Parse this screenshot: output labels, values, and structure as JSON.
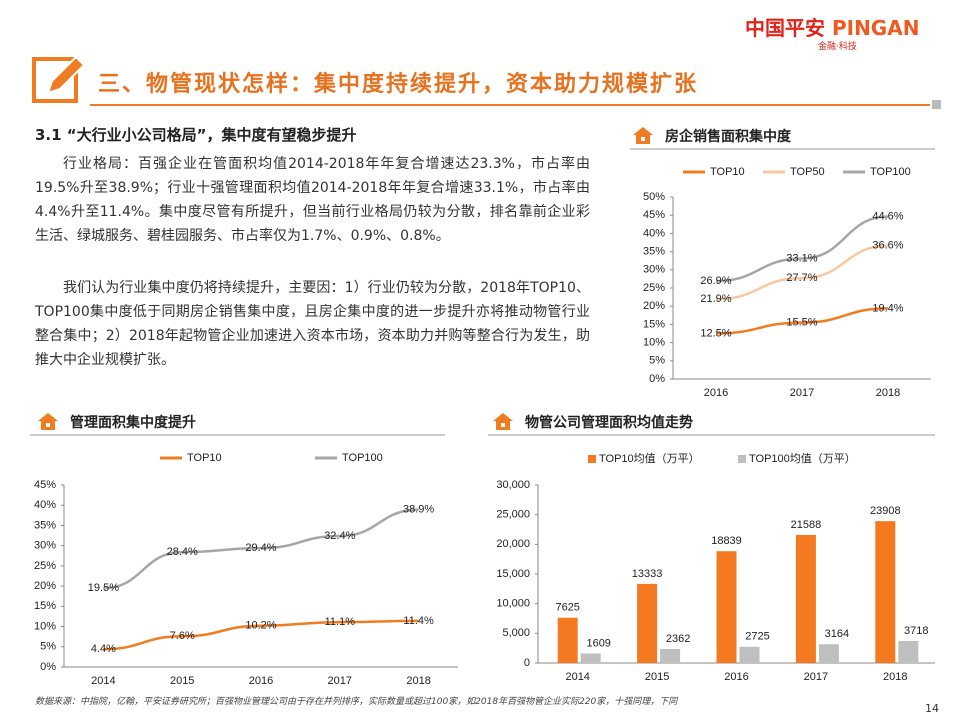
{
  "header": {
    "logo": "中国平安",
    "logo_en": "PINGAN",
    "tagline": "金融·科技",
    "title": "三、物管现状怎样：集中度持续提升，资本助力规模扩张"
  },
  "section": {
    "heading": "3.1 “大行业小公司格局”，集中度有望稳步提升",
    "paragraphs": [
      "行业格局：百强企业在管面积均值2014-2018年年复合增速达23.3%，市占率由19.5%升至38.9%；行业十强管理面积均值2014-2018年年复合增速33.1%，市占率由4.4%升至11.4%。集中度尽管有所提升，但当前行业格局仍较为分散，排名靠前企业彩生活、绿城服务、碧桂园服务、市占率仅为1.7%、0.9%、0.8%。",
      "我们认为行业集中度仍将持续提升，主要因：1）行业仍较为分散，2018年TOP10、TOP100集中度低于同期房企销售集中度，且房企集中度的进一步提升亦将推动物管行业整合集中；2）2018年起物管企业加速进入资本市场，资本助力并购等整合行为发生，助推大中企业规模扩张。"
    ]
  },
  "chart_data": [
    {
      "type": "line",
      "title": "房企销售面积集中度",
      "categories": [
        "2016",
        "2017",
        "2018"
      ],
      "series": [
        {
          "name": "TOP10",
          "color": "#f07c22",
          "values": [
            12.5,
            15.5,
            19.4
          ],
          "value_labels": [
            "12.5%",
            "15.5%",
            "19.4%"
          ]
        },
        {
          "name": "TOP50",
          "color": "#f8c7a0",
          "values": [
            21.9,
            27.7,
            36.6
          ],
          "value_labels": [
            "21.9%",
            "27.7%",
            "36.6%"
          ]
        },
        {
          "name": "TOP100",
          "color": "#a6a6a6",
          "values": [
            26.9,
            33.1,
            44.6
          ],
          "value_labels": [
            "26.9%",
            "33.1%",
            "44.6%"
          ]
        }
      ],
      "ylim": [
        0,
        50
      ],
      "yticks": [
        {
          "value": 0,
          "label": "0%"
        },
        {
          "value": 5,
          "label": "5%"
        },
        {
          "value": 10,
          "label": "10%"
        },
        {
          "value": 15,
          "label": "15%"
        },
        {
          "value": 20,
          "label": "20%"
        },
        {
          "value": 25,
          "label": "25%"
        },
        {
          "value": 30,
          "label": "30%"
        },
        {
          "value": 35,
          "label": "35%"
        },
        {
          "value": 40,
          "label": "40%"
        },
        {
          "value": 45,
          "label": "45%"
        },
        {
          "value": 50,
          "label": "50%"
        }
      ],
      "grid": false
    },
    {
      "type": "line",
      "title": "管理面积集中度提升",
      "categories": [
        "2014",
        "2015",
        "2016",
        "2017",
        "2018"
      ],
      "series": [
        {
          "name": "TOP10",
          "color": "#f07c22",
          "values": [
            4.4,
            7.6,
            10.2,
            11.1,
            11.4
          ],
          "value_labels": [
            "4.4%",
            "7.6%",
            "10.2%",
            "11.1%",
            "11.4%"
          ]
        },
        {
          "name": "TOP100",
          "color": "#a6a6a6",
          "values": [
            19.5,
            28.4,
            29.4,
            32.4,
            38.9
          ],
          "value_labels": [
            "19.5%",
            "28.4%",
            "29.4%",
            "32.4%",
            "38.9%"
          ]
        }
      ],
      "ylim": [
        0,
        45
      ],
      "yticks": [
        {
          "value": 0,
          "label": "0%"
        },
        {
          "value": 5,
          "label": "5%"
        },
        {
          "value": 10,
          "label": "10%"
        },
        {
          "value": 15,
          "label": "15%"
        },
        {
          "value": 20,
          "label": "20%"
        },
        {
          "value": 25,
          "label": "25%"
        },
        {
          "value": 30,
          "label": "30%"
        },
        {
          "value": 35,
          "label": "35%"
        },
        {
          "value": 40,
          "label": "40%"
        },
        {
          "value": 45,
          "label": "45%"
        }
      ],
      "grid": false
    },
    {
      "type": "bar",
      "title": "物管公司管理面积均值走势",
      "categories": [
        "2014",
        "2015",
        "2016",
        "2017",
        "2018"
      ],
      "series": [
        {
          "name": "TOP10均值（万平）",
          "color": "#f47920",
          "values": [
            7625,
            13333,
            18839,
            21588,
            23908
          ]
        },
        {
          "name": "TOP100均值（万平）",
          "color": "#bfbfbf",
          "values": [
            1609,
            2362,
            2725,
            3164,
            3718
          ]
        }
      ],
      "ylim": [
        0,
        30000
      ],
      "yticks": [
        0,
        {
          "value": 5000,
          "label": "5,000"
        },
        {
          "value": 10000,
          "label": "10,000"
        },
        {
          "value": 15000,
          "label": "15,000"
        },
        {
          "value": 20000,
          "label": "20,000"
        },
        {
          "value": 25000,
          "label": "25,000"
        },
        {
          "value": 30000,
          "label": "30,000"
        }
      ],
      "grid": false
    }
  ],
  "footer": {
    "source": "数据来源：中指院，亿翰，平安证券研究所；百强物业管理公司由于存在并列排序，实际数量或超过100家，如2018年百强物管企业实际220家，十强同理，下同",
    "page": "14"
  }
}
